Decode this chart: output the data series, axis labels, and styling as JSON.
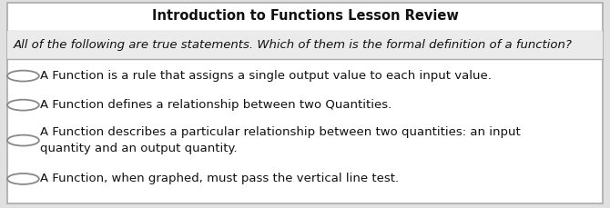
{
  "title": "Introduction to Functions Lesson Review",
  "question": "All of the following are true statements. Which of them is the formal definition of a function?",
  "options": [
    "A Function is a rule that assigns a single output value to each input value.",
    "A Function defines a relationship between two Quantities.",
    "A Function describes a particular relationship between two quantities: an input\nquantity and an output quantity.",
    "A Function, when graphed, must pass the vertical line test."
  ],
  "bg_color": "#e0e0e0",
  "box_bg": "#ffffff",
  "question_bg": "#ebebeb",
  "border_color": "#aaaaaa",
  "title_fontsize": 10.5,
  "question_fontsize": 9.5,
  "option_fontsize": 9.5,
  "title_font_weight": "bold",
  "circle_color": "#888888",
  "circle_fill": "#ffffff",
  "text_color": "#111111"
}
